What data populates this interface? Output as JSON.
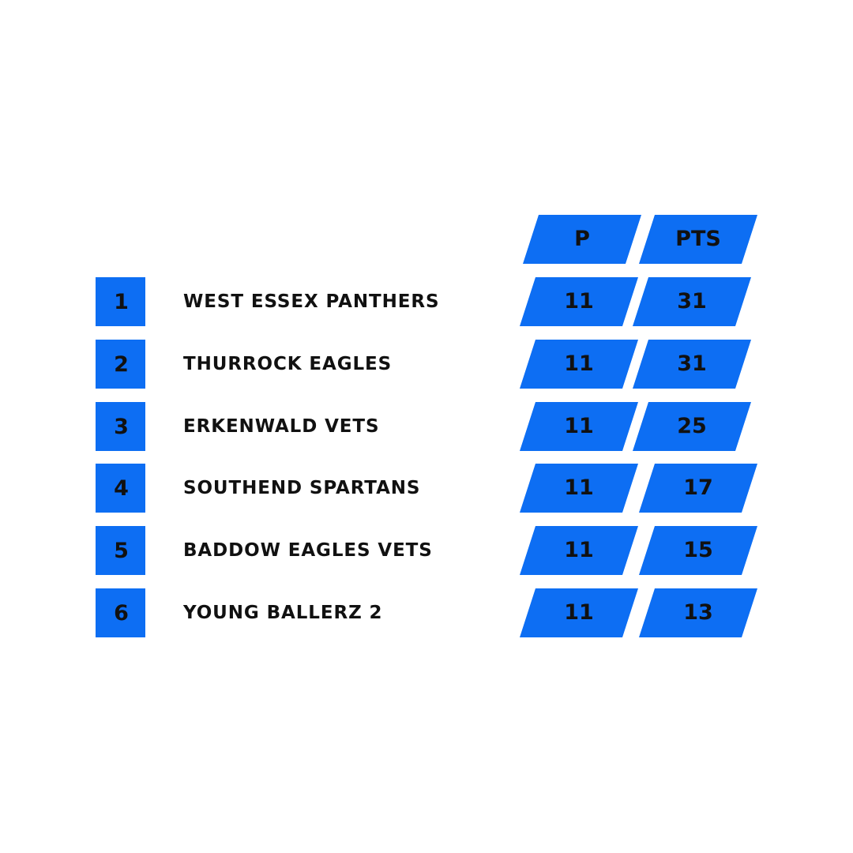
{
  "colors": {
    "accent": "#0d6ef3",
    "text": "#111111",
    "background": "#ffffff"
  },
  "headers": {
    "played": "P",
    "points": "PTS"
  },
  "rows": [
    {
      "rank": "1",
      "team": "WEST ESSEX PANTHERS",
      "played": "11",
      "points": "31"
    },
    {
      "rank": "2",
      "team": "THURROCK EAGLES",
      "played": "11",
      "points": "31"
    },
    {
      "rank": "3",
      "team": "ERKENWALD VETS",
      "played": "11",
      "points": "25"
    },
    {
      "rank": "4",
      "team": "SOUTHEND SPARTANS",
      "played": "11",
      "points": "17"
    },
    {
      "rank": "5",
      "team": "BADDOW EAGLES VETS",
      "played": "11",
      "points": "15"
    },
    {
      "rank": "6",
      "team": "YOUNG BALLERZ 2",
      "played": "11",
      "points": "13"
    }
  ]
}
